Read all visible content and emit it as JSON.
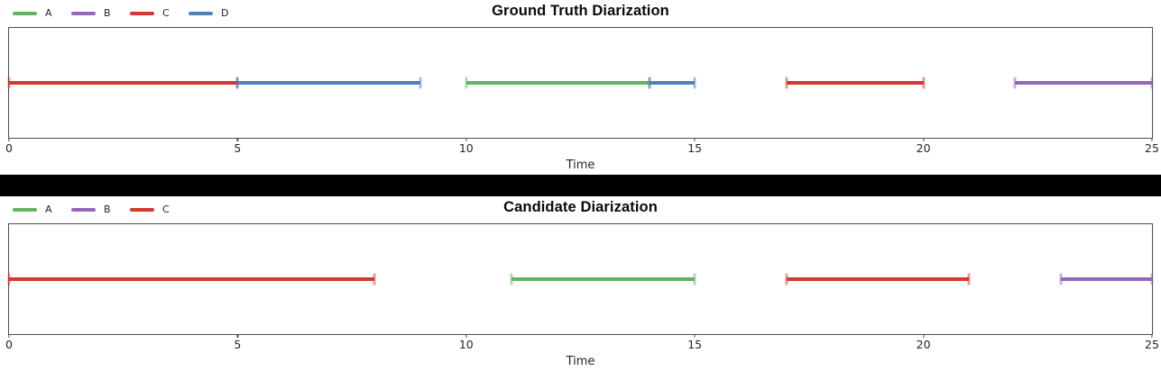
{
  "page": {
    "background": "#ffffff",
    "separator_color": "#000000",
    "spine_color": "#4d4d4d"
  },
  "chart_data": [
    {
      "type": "timeline",
      "title": "Ground Truth Diarization",
      "xlabel": "Time",
      "xlim": [
        0,
        25
      ],
      "xticks": [
        0,
        5,
        10,
        15,
        20,
        25
      ],
      "grid": false,
      "legend_position": "top-left",
      "legend": [
        "A",
        "B",
        "C",
        "D"
      ],
      "colors": {
        "A": "#64b35e",
        "B": "#9467bd",
        "C": "#d13a2e",
        "D": "#4d80bd"
      },
      "segments": [
        {
          "speaker": "C",
          "start": 0,
          "end": 5
        },
        {
          "speaker": "D",
          "start": 5,
          "end": 9
        },
        {
          "speaker": "A",
          "start": 10,
          "end": 14
        },
        {
          "speaker": "D",
          "start": 14,
          "end": 15
        },
        {
          "speaker": "C",
          "start": 17,
          "end": 20
        },
        {
          "speaker": "B",
          "start": 22,
          "end": 25
        }
      ]
    },
    {
      "type": "timeline",
      "title": "Candidate Diarization",
      "xlabel": "Time",
      "xlim": [
        0,
        25
      ],
      "xticks": [
        0,
        5,
        10,
        15,
        20,
        25
      ],
      "grid": false,
      "legend_position": "top-left",
      "legend": [
        "A",
        "B",
        "C"
      ],
      "colors": {
        "A": "#64b35e",
        "B": "#9467bd",
        "C": "#d13a2e"
      },
      "segments": [
        {
          "speaker": "C",
          "start": 0,
          "end": 8
        },
        {
          "speaker": "A",
          "start": 11,
          "end": 15
        },
        {
          "speaker": "C",
          "start": 17,
          "end": 21
        },
        {
          "speaker": "B",
          "start": 23,
          "end": 25
        }
      ]
    }
  ]
}
